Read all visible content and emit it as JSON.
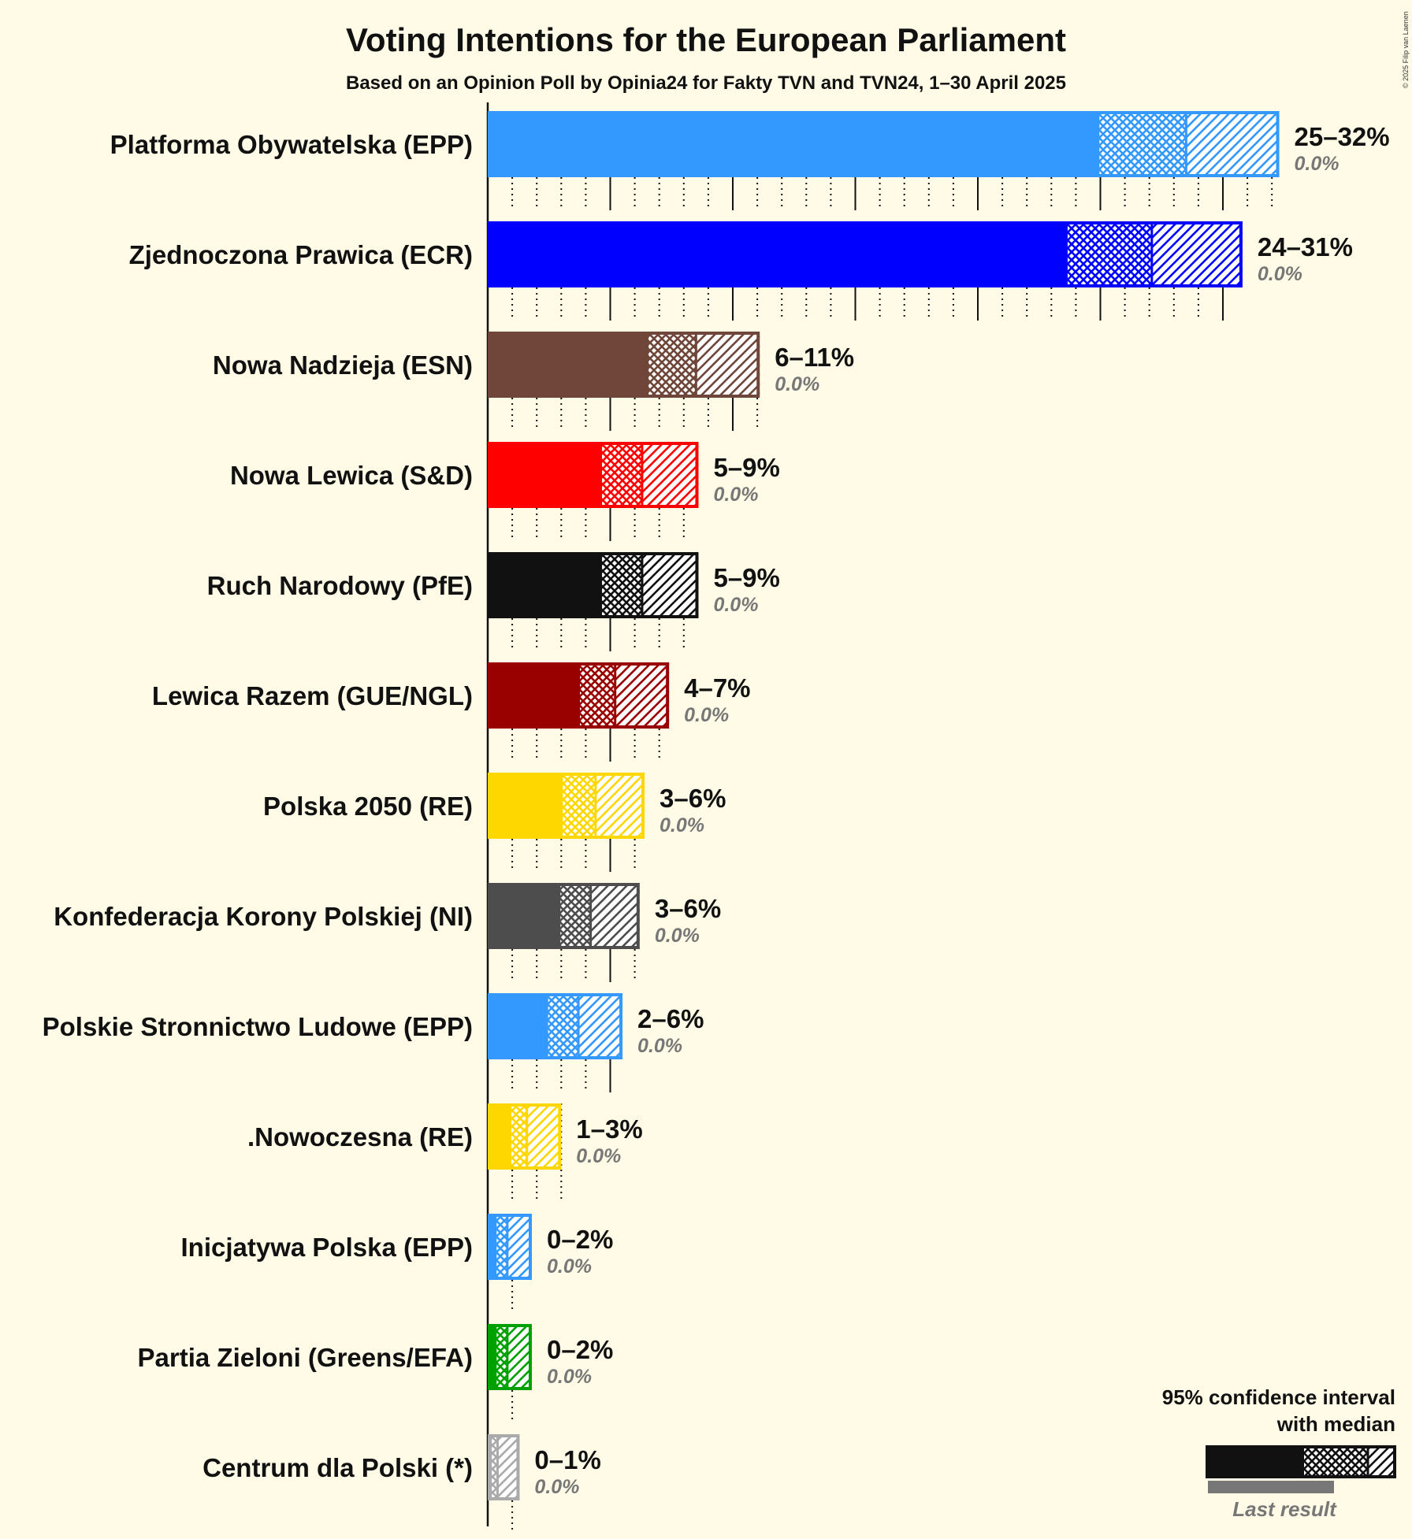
{
  "chart_data": {
    "type": "bar",
    "title": "Voting Intentions for the European Parliament",
    "subtitle": "Based on an Opinion Poll by Opinia24 for Fakty TVN and TVN24, 1–30 April 2025",
    "copyright": "© 2025 Filip van Laenen",
    "xlim": [
      0,
      33
    ],
    "series": [
      {
        "name": "Platforma Obywatelska (EPP)",
        "color": "#3399FF",
        "ci_low": 24.9,
        "median": 28.5,
        "ci_high": 32.3,
        "range_label": "25–32%",
        "last_result": 0.0,
        "last_label": "0.0%",
        "dashed_text": false
      },
      {
        "name": "Zjednoczona Prawica (ECR)",
        "color": "#0000FF",
        "ci_low": 23.6,
        "median": 27.1,
        "ci_high": 30.8,
        "range_label": "24–31%",
        "last_result": 0.0,
        "last_label": "0.0%",
        "dashed_text": false
      },
      {
        "name": "Nowa Nadzieja (ESN)",
        "color": "#6F4639",
        "ci_low": 6.5,
        "median": 8.5,
        "ci_high": 11.1,
        "range_label": "6–11%",
        "last_result": 0.0,
        "last_label": "0.0%",
        "dashed_text": false
      },
      {
        "name": "Nowa Lewica (S&D)",
        "color": "#FF0000",
        "ci_low": 4.6,
        "median": 6.3,
        "ci_high": 8.6,
        "range_label": "5–9%",
        "last_result": 0.0,
        "last_label": "0.0%",
        "dashed_text": false
      },
      {
        "name": "Ruch Narodowy (PfE)",
        "color": "#111111",
        "ci_low": 4.6,
        "median": 6.3,
        "ci_high": 8.6,
        "range_label": "5–9%",
        "last_result": 0.0,
        "last_label": "0.0%",
        "dashed_text": false
      },
      {
        "name": "Lewica Razem (GUE/NGL)",
        "color": "#990000",
        "ci_low": 3.7,
        "median": 5.2,
        "ci_high": 7.4,
        "range_label": "4–7%",
        "last_result": 0.0,
        "last_label": "0.0%",
        "dashed_text": false
      },
      {
        "name": "Polska 2050 (RE)",
        "color": "#FFD700",
        "ci_low": 3.0,
        "median": 4.4,
        "ci_high": 6.4,
        "range_label": "3–6%",
        "last_result": 0.0,
        "last_label": "0.0%",
        "dashed_text": false
      },
      {
        "name": "Konfederacja Korony Polskiej (NI)",
        "color": "#4D4D4D",
        "ci_low": 2.9,
        "median": 4.2,
        "ci_high": 6.2,
        "range_label": "3–6%",
        "last_result": 0.0,
        "last_label": "0.0%",
        "dashed_text": false
      },
      {
        "name": "Polskie Stronnictwo Ludowe (EPP)",
        "color": "#3399FF",
        "ci_low": 2.4,
        "median": 3.7,
        "ci_high": 5.5,
        "range_label": "2–6%",
        "last_result": 0.0,
        "last_label": "0.0%",
        "dashed_text": false
      },
      {
        "name": ".Nowoczesna (RE)",
        "color": "#FFD700",
        "ci_low": 0.9,
        "median": 1.6,
        "ci_high": 3.0,
        "range_label": "1–3%",
        "last_result": 0.0,
        "last_label": "0.0%",
        "dashed_text": false
      },
      {
        "name": "Inicjatywa Polska (EPP)",
        "color": "#3399FF",
        "ci_low": 0.3,
        "median": 0.8,
        "ci_high": 1.8,
        "range_label": "0–2%",
        "last_result": 0.0,
        "last_label": "0.0%",
        "dashed_text": false
      },
      {
        "name": "Partia Zieloni (Greens/EFA)",
        "color": "#00A000",
        "ci_low": 0.3,
        "median": 0.8,
        "ci_high": 1.8,
        "range_label": "0–2%",
        "last_result": 0.0,
        "last_label": "0.0%",
        "dashed_text": false
      },
      {
        "name": "Centrum dla Polski (*)",
        "color": "#AAAAAA",
        "ci_low": 0.1,
        "median": 0.4,
        "ci_high": 1.3,
        "range_label": "0–1%",
        "last_result": 0.0,
        "last_label": "0.0%",
        "dashed_text": false
      }
    ],
    "legend": {
      "line1": "95% confidence interval",
      "line2": "with median",
      "last_result": "Last result"
    }
  }
}
